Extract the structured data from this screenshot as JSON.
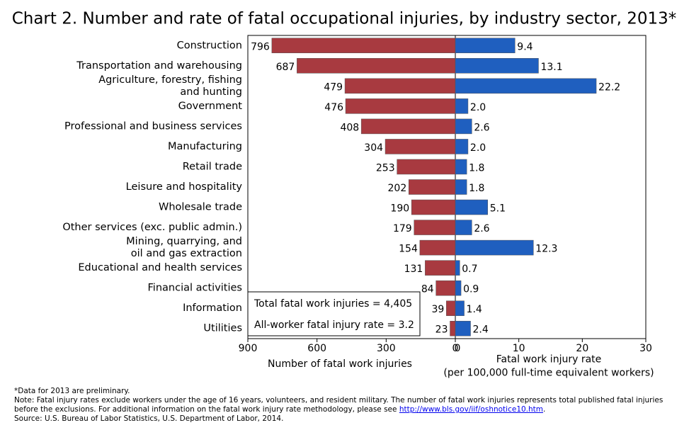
{
  "title": "Chart 2. Number and rate of fatal occupational injuries, by industry sector, 2013*",
  "chart_data": {
    "type": "butterfly",
    "categories": [
      "Construction",
      "Transportation and warehousing",
      "Agriculture, forestry, fishing\nand hunting",
      "Government",
      "Professional and business services",
      "Manufacturing",
      "Retail trade",
      "Leisure and hospitality",
      "Wholesale trade",
      "Other services (exc. public admin.)",
      "Mining, quarrying, and\noil and gas extraction",
      "Educational and health services",
      "Financial activities",
      "Information",
      "Utilities"
    ],
    "series": [
      {
        "axis": "x",
        "color": "#a83a40",
        "values": [
          796,
          687,
          479,
          476,
          408,
          304,
          253,
          202,
          190,
          179,
          154,
          131,
          84,
          39,
          23
        ]
      },
      {
        "axis": "x2",
        "color": "#1f5fbf",
        "values": [
          9.4,
          13.1,
          22.2,
          2.0,
          2.6,
          2.0,
          1.8,
          1.8,
          5.1,
          2.6,
          12.3,
          0.7,
          0.9,
          1.4,
          2.4
        ],
        "value_labels": [
          "9.4",
          "13.1",
          "22.2",
          "2.0",
          "2.6",
          "2.0",
          "1.8",
          "1.8",
          "5.1",
          "2.6",
          "12.3",
          "0.7",
          "0.9",
          "1.4",
          "2.4"
        ]
      }
    ],
    "xlim": [
      0,
      900
    ],
    "xticks": [
      900,
      600,
      300,
      0
    ],
    "x_reversed": true,
    "xlabel": "Number of fatal work injuries",
    "x2lim": [
      0,
      30
    ],
    "x2ticks": [
      0,
      10,
      20,
      30
    ],
    "x2label": "Fatal work injury rate\n(per 100,000 full-time equivalent workers)",
    "annotations": [
      "Total fatal work injuries = 4,405",
      "All-worker fatal injury rate = 3.2"
    ]
  },
  "footnotes": {
    "preliminary": "*Data for 2013 are preliminary.",
    "note_before_link": "Note: Fatal injury rates exclude workers under the age of 16 years, volunteers, and resident military. The number of fatal work injuries represents total published fatal injuries before the exclusions. For additional information on the fatal work injury rate methodology, please see",
    "link": "http://www.bls.gov/iif/oshnotice10.htm",
    "note_after_link": ".",
    "source": "Source: U.S. Bureau of Labor Statistics, U.S. Department of Labor, 2014."
  }
}
